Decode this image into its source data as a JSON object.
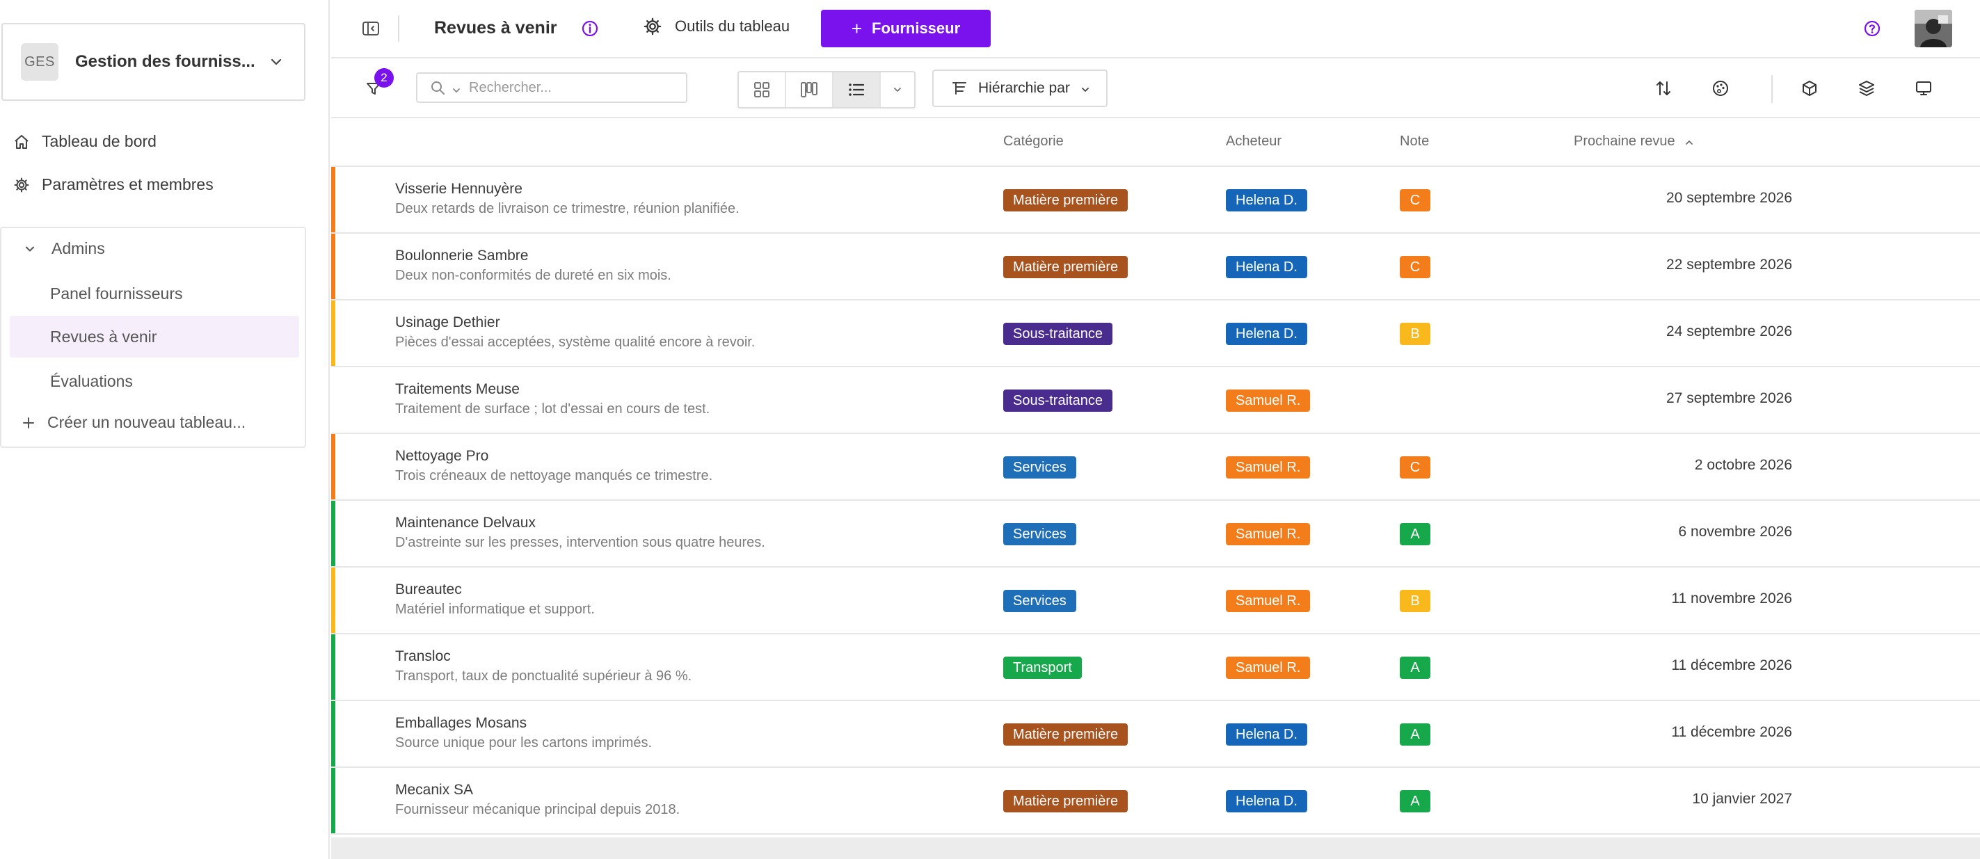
{
  "workspace": {
    "initials": "GES",
    "name": "Gestion des fourniss..."
  },
  "sidebar": {
    "nav": [
      {
        "label": "Tableau de bord",
        "icon": "home-icon"
      },
      {
        "label": "Paramètres et membres",
        "icon": "gear-icon"
      }
    ],
    "section_title": "Admins",
    "boards": [
      {
        "label": "Panel fournisseurs",
        "active": false
      },
      {
        "label": "Revues à venir",
        "active": true
      },
      {
        "label": "Évaluations",
        "active": false
      }
    ],
    "create_label": "Créer un nouveau tableau..."
  },
  "topbar": {
    "title": "Revues à venir",
    "tools_label": "Outils du tableau",
    "add_label": "Fournisseur"
  },
  "toolbar": {
    "filter_count": "2",
    "search_placeholder": "Rechercher...",
    "hierarchy_label": "Hiérarchie par",
    "active_view": "list"
  },
  "table": {
    "columns": {
      "category": "Catégorie",
      "buyer": "Acheteur",
      "grade": "Note",
      "next_review": "Prochaine revue"
    },
    "sort": {
      "column": "next_review",
      "direction": "asc"
    },
    "rows": [
      {
        "name": "Visserie Hennuyère",
        "desc": "Deux retards de livraison ce trimestre, réunion planifiée.",
        "category": "Matière première",
        "buyer": "Helena D.",
        "grade": "C",
        "date": "20 septembre 2026"
      },
      {
        "name": "Boulonnerie Sambre",
        "desc": "Deux non-conformités de dureté en six mois.",
        "category": "Matière première",
        "buyer": "Helena D.",
        "grade": "C",
        "date": "22 septembre 2026"
      },
      {
        "name": "Usinage Dethier",
        "desc": "Pièces d'essai acceptées, système qualité encore à revoir.",
        "category": "Sous-traitance",
        "buyer": "Helena D.",
        "grade": "B",
        "date": "24 septembre 2026"
      },
      {
        "name": "Traitements Meuse",
        "desc": "Traitement de surface ; lot d'essai en cours de test.",
        "category": "Sous-traitance",
        "buyer": "Samuel R.",
        "grade": "",
        "date": "27 septembre 2026"
      },
      {
        "name": "Nettoyage Pro",
        "desc": "Trois créneaux de nettoyage manqués ce trimestre.",
        "category": "Services",
        "buyer": "Samuel R.",
        "grade": "C",
        "date": "2 octobre 2026"
      },
      {
        "name": "Maintenance Delvaux",
        "desc": "D'astreinte sur les presses, intervention sous quatre heures.",
        "category": "Services",
        "buyer": "Samuel R.",
        "grade": "A",
        "date": "6 novembre 2026"
      },
      {
        "name": "Bureautec",
        "desc": "Matériel informatique et support.",
        "category": "Services",
        "buyer": "Samuel R.",
        "grade": "B",
        "date": "11 novembre 2026"
      },
      {
        "name": "Transloc",
        "desc": "Transport, taux de ponctualité supérieur à 96 %.",
        "category": "Transport",
        "buyer": "Samuel R.",
        "grade": "A",
        "date": "11 décembre 2026"
      },
      {
        "name": "Emballages Mosans",
        "desc": "Source unique pour les cartons imprimés.",
        "category": "Matière première",
        "buyer": "Helena D.",
        "grade": "A",
        "date": "11 décembre 2026"
      },
      {
        "name": "Mecanix SA",
        "desc": "Fournisseur mécanique principal depuis 2018.",
        "category": "Matière première",
        "buyer": "Helena D.",
        "grade": "A",
        "date": "10 janvier 2027"
      }
    ]
  },
  "colors": {
    "accent": "#7a12ee",
    "categories": {
      "Matière première": "#a8521e",
      "Sous-traitance": "#4a2c8f",
      "Services": "#1f6fb8",
      "Transport": "#16a84b"
    },
    "buyers": {
      "Helena D.": "#1566b9",
      "Samuel R.": "#f27d1a"
    },
    "grades": {
      "A": "#16a84b",
      "B": "#f9b81b",
      "C": "#f27d1a",
      "": "#ffffff"
    }
  }
}
